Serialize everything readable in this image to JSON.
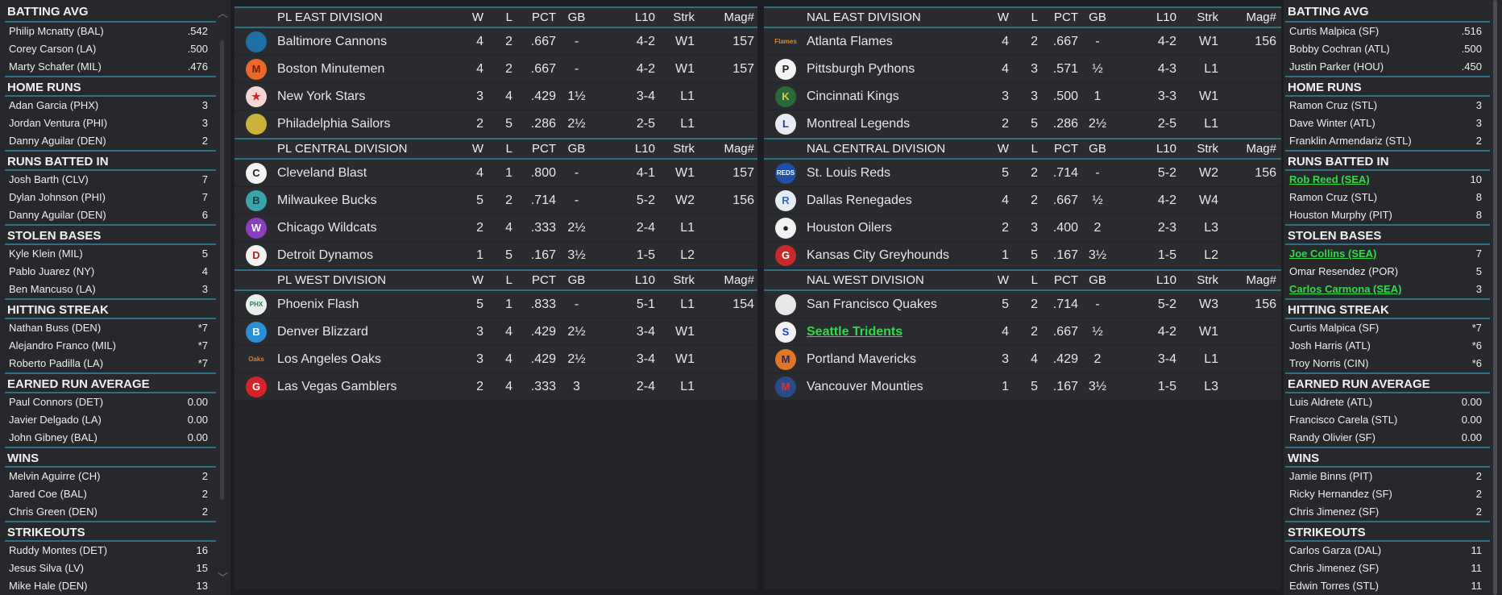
{
  "left_leaders": [
    {
      "title": "BATTING AVG",
      "rows": [
        {
          "name": "Philip Mcnatty (BAL)",
          "value": ".542"
        },
        {
          "name": "Corey Carson (LA)",
          "value": ".500"
        },
        {
          "name": "Marty Schafer (MIL)",
          "value": ".476"
        }
      ]
    },
    {
      "title": "HOME RUNS",
      "rows": [
        {
          "name": "Adan Garcia (PHX)",
          "value": "3"
        },
        {
          "name": "Jordan Ventura (PHI)",
          "value": "3"
        },
        {
          "name": "Danny Aguilar (DEN)",
          "value": "2"
        }
      ]
    },
    {
      "title": "RUNS BATTED IN",
      "rows": [
        {
          "name": "Josh Barth (CLV)",
          "value": "7"
        },
        {
          "name": "Dylan Johnson (PHI)",
          "value": "7"
        },
        {
          "name": "Danny Aguilar (DEN)",
          "value": "6"
        }
      ]
    },
    {
      "title": "STOLEN BASES",
      "rows": [
        {
          "name": "Kyle Klein (MIL)",
          "value": "5"
        },
        {
          "name": "Pablo Juarez (NY)",
          "value": "4"
        },
        {
          "name": "Ben Mancuso (LA)",
          "value": "3"
        }
      ]
    },
    {
      "title": "HITTING STREAK",
      "rows": [
        {
          "name": "Nathan Buss (DEN)",
          "value": "*7"
        },
        {
          "name": "Alejandro Franco (MIL)",
          "value": "*7"
        },
        {
          "name": "Roberto Padilla (LA)",
          "value": "*7"
        }
      ]
    },
    {
      "title": "EARNED RUN AVERAGE",
      "rows": [
        {
          "name": "Paul Connors (DET)",
          "value": "0.00"
        },
        {
          "name": "Javier Delgado (LA)",
          "value": "0.00"
        },
        {
          "name": "John Gibney (BAL)",
          "value": "0.00"
        }
      ]
    },
    {
      "title": "WINS",
      "rows": [
        {
          "name": "Melvin Aguirre (CH)",
          "value": "2"
        },
        {
          "name": "Jared Coe (BAL)",
          "value": "2"
        },
        {
          "name": "Chris Green (DEN)",
          "value": "2"
        }
      ]
    },
    {
      "title": "STRIKEOUTS",
      "rows": [
        {
          "name": "Ruddy Montes (DET)",
          "value": "16"
        },
        {
          "name": "Jesus Silva (LV)",
          "value": "15"
        },
        {
          "name": "Mike Hale (DEN)",
          "value": "13"
        }
      ]
    }
  ],
  "right_leaders": [
    {
      "title": "BATTING AVG",
      "rows": [
        {
          "name": "Curtis Malpica (SF)",
          "value": ".516"
        },
        {
          "name": "Bobby Cochran (ATL)",
          "value": ".500"
        },
        {
          "name": "Justin Parker (HOU)",
          "value": ".450"
        }
      ]
    },
    {
      "title": "HOME RUNS",
      "rows": [
        {
          "name": "Ramon Cruz (STL)",
          "value": "3"
        },
        {
          "name": "Dave Winter (ATL)",
          "value": "3"
        },
        {
          "name": "Franklin Armendariz (STL)",
          "value": "2"
        }
      ]
    },
    {
      "title": "RUNS BATTED IN",
      "rows": [
        {
          "name": "Rob Reed (SEA)",
          "value": "10",
          "highlight": true
        },
        {
          "name": "Ramon Cruz (STL)",
          "value": "8"
        },
        {
          "name": "Houston Murphy (PIT)",
          "value": "8"
        }
      ]
    },
    {
      "title": "STOLEN BASES",
      "rows": [
        {
          "name": "Joe Collins (SEA)",
          "value": "7",
          "highlight": true
        },
        {
          "name": "Omar Resendez (POR)",
          "value": "5"
        },
        {
          "name": "Carlos Carmona (SEA)",
          "value": "3",
          "highlight": true
        }
      ]
    },
    {
      "title": "HITTING STREAK",
      "rows": [
        {
          "name": "Curtis Malpica (SF)",
          "value": "*7"
        },
        {
          "name": "Josh Harris (ATL)",
          "value": "*6"
        },
        {
          "name": "Troy Norris (CIN)",
          "value": "*6"
        }
      ]
    },
    {
      "title": "EARNED RUN AVERAGE",
      "rows": [
        {
          "name": "Luis Aldrete (ATL)",
          "value": "0.00"
        },
        {
          "name": "Francisco Carela (STL)",
          "value": "0.00"
        },
        {
          "name": "Randy Olivier (SF)",
          "value": "0.00"
        }
      ]
    },
    {
      "title": "WINS",
      "rows": [
        {
          "name": "Jamie Binns (PIT)",
          "value": "2"
        },
        {
          "name": "Ricky Hernandez (SF)",
          "value": "2"
        },
        {
          "name": "Chris Jimenez (SF)",
          "value": "2"
        }
      ]
    },
    {
      "title": "STRIKEOUTS",
      "rows": [
        {
          "name": "Carlos Garza (DAL)",
          "value": "11"
        },
        {
          "name": "Chris Jimenez (SF)",
          "value": "11"
        },
        {
          "name": "Edwin Torres (STL)",
          "value": "11"
        }
      ]
    }
  ],
  "columns": [
    "W",
    "L",
    "PCT",
    "GB",
    "L10",
    "Strk",
    "Mag#"
  ],
  "highlight_color": "#33d94a",
  "accent_color": "#2f6f86",
  "leagues": [
    {
      "divisions": [
        {
          "title": "PL EAST DIVISION",
          "teams": [
            {
              "name": "Baltimore Cannons",
              "logo": {
                "icon": "cannon",
                "letter": "",
                "bg": "#1e6fa8",
                "fg": "#fff"
              },
              "w": "4",
              "l": "2",
              "pct": ".667",
              "gb": "-",
              "l10": "4-2",
              "strk": "W1",
              "mag": "157"
            },
            {
              "name": "Boston Minutemen",
              "logo": {
                "icon": "minuteman-shield",
                "letter": "M",
                "bg": "#e8692a",
                "fg": "#7a1f00"
              },
              "w": "4",
              "l": "2",
              "pct": ".667",
              "gb": "-",
              "l10": "4-2",
              "strk": "W1",
              "mag": "157"
            },
            {
              "name": "New York Stars",
              "logo": {
                "icon": "star",
                "letter": "★",
                "bg": "#f3d6d6",
                "fg": "#d0232a"
              },
              "w": "3",
              "l": "4",
              "pct": ".429",
              "gb": "1½",
              "l10": "3-4",
              "strk": "L1",
              "mag": ""
            },
            {
              "name": "Philadelphia Sailors",
              "logo": {
                "icon": "sailor-hat",
                "letter": "",
                "bg": "#c9b13a",
                "fg": "#3a5a2a"
              },
              "w": "2",
              "l": "5",
              "pct": ".286",
              "gb": "2½",
              "l10": "2-5",
              "strk": "L1",
              "mag": ""
            }
          ]
        },
        {
          "title": "PL CENTRAL DIVISION",
          "teams": [
            {
              "name": "Cleveland Blast",
              "logo": {
                "icon": "c-diamond",
                "letter": "C",
                "bg": "#f4f4f4",
                "fg": "#222"
              },
              "w": "4",
              "l": "1",
              "pct": ".800",
              "gb": "-",
              "l10": "4-1",
              "strk": "W1",
              "mag": "157"
            },
            {
              "name": "Milwaukee Bucks",
              "logo": {
                "icon": "buck",
                "letter": "B",
                "bg": "#3aa5a8",
                "fg": "#0f3f40"
              },
              "w": "5",
              "l": "2",
              "pct": ".714",
              "gb": "-",
              "l10": "5-2",
              "strk": "W2",
              "mag": "156"
            },
            {
              "name": "Chicago Wildcats",
              "logo": {
                "icon": "w-letter",
                "letter": "W",
                "bg": "#8a3fc2",
                "fg": "#fff"
              },
              "w": "2",
              "l": "4",
              "pct": ".333",
              "gb": "2½",
              "l10": "2-4",
              "strk": "L1",
              "mag": ""
            },
            {
              "name": "Detroit Dynamos",
              "logo": {
                "icon": "d-bats",
                "letter": "D",
                "bg": "#f1f1f1",
                "fg": "#b0222a"
              },
              "w": "1",
              "l": "5",
              "pct": ".167",
              "gb": "3½",
              "l10": "1-5",
              "strk": "L2",
              "mag": ""
            }
          ]
        },
        {
          "title": "PL WEST DIVISION",
          "teams": [
            {
              "name": "Phoenix Flash",
              "logo": {
                "icon": "phx-diamond",
                "letter": "PHX",
                "bg": "#e9f0ec",
                "fg": "#2c7a55"
              },
              "w": "5",
              "l": "1",
              "pct": ".833",
              "gb": "-",
              "l10": "5-1",
              "strk": "L1",
              "mag": "154"
            },
            {
              "name": "Denver Blizzard",
              "logo": {
                "icon": "b-letter",
                "letter": "B",
                "bg": "#2a8fd6",
                "fg": "#fff"
              },
              "w": "3",
              "l": "4",
              "pct": ".429",
              "gb": "2½",
              "l10": "3-4",
              "strk": "W1",
              "mag": ""
            },
            {
              "name": "Los Angeles Oaks",
              "logo": {
                "icon": "oaks-script",
                "letter": "Oaks",
                "bg": "transparent",
                "fg": "#e07a2a"
              },
              "w": "3",
              "l": "4",
              "pct": ".429",
              "gb": "2½",
              "l10": "3-4",
              "strk": "W1",
              "mag": ""
            },
            {
              "name": "Las Vegas Gamblers",
              "logo": {
                "icon": "g-letter",
                "letter": "G",
                "bg": "#d6232a",
                "fg": "#fff"
              },
              "w": "2",
              "l": "4",
              "pct": ".333",
              "gb": "3",
              "l10": "2-4",
              "strk": "L1",
              "mag": ""
            }
          ]
        }
      ]
    },
    {
      "divisions": [
        {
          "title": "NAL EAST DIVISION",
          "teams": [
            {
              "name": "Atlanta Flames",
              "logo": {
                "icon": "flames-script",
                "letter": "Flames",
                "bg": "transparent",
                "fg": "#e0862a"
              },
              "w": "4",
              "l": "2",
              "pct": ".667",
              "gb": "-",
              "l10": "4-2",
              "strk": "W1",
              "mag": "156"
            },
            {
              "name": "Pittsburgh Pythons",
              "logo": {
                "icon": "p-circle",
                "letter": "P",
                "bg": "#f4f4f4",
                "fg": "#222"
              },
              "w": "4",
              "l": "3",
              "pct": ".571",
              "gb": "½",
              "l10": "4-3",
              "strk": "L1",
              "mag": ""
            },
            {
              "name": "Cincinnati Kings",
              "logo": {
                "icon": "k-letter",
                "letter": "K",
                "bg": "#2a6a3a",
                "fg": "#e0c84a"
              },
              "w": "3",
              "l": "3",
              "pct": ".500",
              "gb": "1",
              "l10": "3-3",
              "strk": "W1",
              "mag": ""
            },
            {
              "name": "Montreal Legends",
              "logo": {
                "icon": "l-shield",
                "letter": "L",
                "bg": "#e8ecf2",
                "fg": "#1f3f8a"
              },
              "w": "2",
              "l": "5",
              "pct": ".286",
              "gb": "2½",
              "l10": "2-5",
              "strk": "L1",
              "mag": ""
            }
          ]
        },
        {
          "title": "NAL CENTRAL DIVISION",
          "teams": [
            {
              "name": "St. Louis Reds",
              "logo": {
                "icon": "reds-script",
                "letter": "REDS",
                "bg": "#1f4fa8",
                "fg": "#fff"
              },
              "w": "5",
              "l": "2",
              "pct": ".714",
              "gb": "-",
              "l10": "5-2",
              "strk": "W2",
              "mag": "156"
            },
            {
              "name": "Dallas Renegades",
              "logo": {
                "icon": "r-shield",
                "letter": "R",
                "bg": "#e6ecf6",
                "fg": "#3a6ab0"
              },
              "w": "4",
              "l": "2",
              "pct": ".667",
              "gb": "½",
              "l10": "4-2",
              "strk": "W4",
              "mag": ""
            },
            {
              "name": "Houston Oilers",
              "logo": {
                "icon": "oil-drop",
                "letter": "●",
                "bg": "#f1f1f1",
                "fg": "#222"
              },
              "w": "2",
              "l": "3",
              "pct": ".400",
              "gb": "2",
              "l10": "2-3",
              "strk": "L3",
              "mag": ""
            },
            {
              "name": "Kansas City Greyhounds",
              "logo": {
                "icon": "g-shield",
                "letter": "G",
                "bg": "#c62a2a",
                "fg": "#fff"
              },
              "w": "1",
              "l": "5",
              "pct": ".167",
              "gb": "3½",
              "l10": "1-5",
              "strk": "L2",
              "mag": ""
            }
          ]
        },
        {
          "title": "NAL WEST DIVISION",
          "teams": [
            {
              "name": "San Francisco Quakes",
              "logo": {
                "icon": "baseball",
                "letter": "",
                "bg": "#e8e8e8",
                "fg": "#333"
              },
              "w": "5",
              "l": "2",
              "pct": ".714",
              "gb": "-",
              "l10": "5-2",
              "strk": "W3",
              "mag": "156"
            },
            {
              "name": "Seattle Tridents",
              "logo": {
                "icon": "s-diamond",
                "letter": "S",
                "bg": "#f1f1f1",
                "fg": "#1f3fc8"
              },
              "highlight": true,
              "w": "4",
              "l": "2",
              "pct": ".667",
              "gb": "½",
              "l10": "4-2",
              "strk": "W1",
              "mag": ""
            },
            {
              "name": "Portland Mavericks",
              "logo": {
                "icon": "m-flame",
                "letter": "M",
                "bg": "#e0762a",
                "fg": "#1f2a5a"
              },
              "w": "3",
              "l": "4",
              "pct": ".429",
              "gb": "2",
              "l10": "3-4",
              "strk": "L1",
              "mag": ""
            },
            {
              "name": "Vancouver Mounties",
              "logo": {
                "icon": "mountie-tower",
                "letter": "M",
                "bg": "#2a4a8a",
                "fg": "#e0302a"
              },
              "w": "1",
              "l": "5",
              "pct": ".167",
              "gb": "3½",
              "l10": "1-5",
              "strk": "L3",
              "mag": ""
            }
          ]
        }
      ]
    }
  ]
}
